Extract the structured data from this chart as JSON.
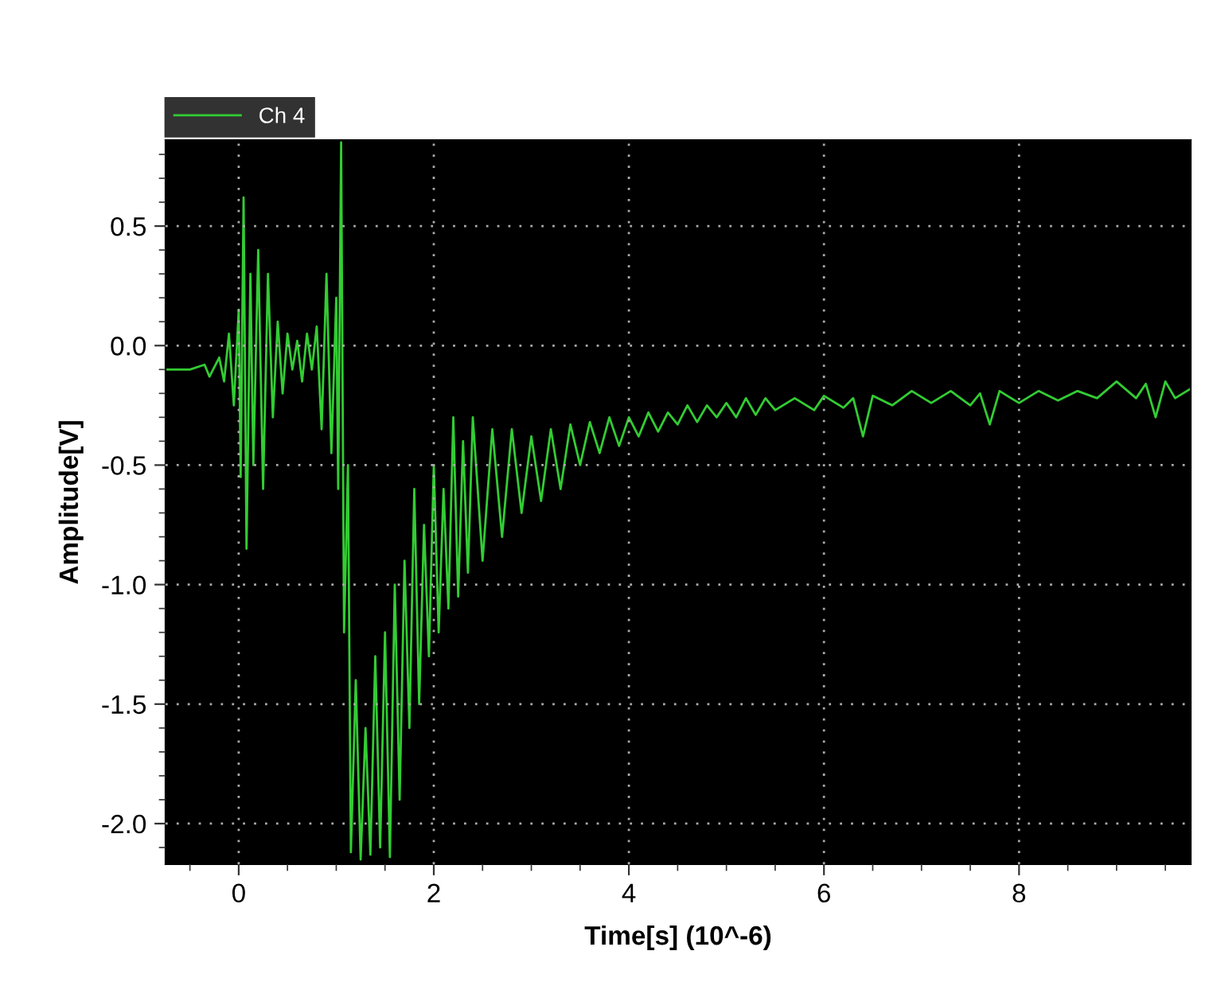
{
  "chart_data": {
    "type": "line",
    "xlabel": "Time[s] (10^-6)",
    "ylabel": "Amplitude[V]",
    "xlim": [
      -0.75,
      9.76
    ],
    "ylim": [
      -2.17,
      0.86
    ],
    "xticks": [
      0,
      2,
      4,
      6,
      8
    ],
    "yticks": [
      {
        "value": 0.5,
        "label": "0.5"
      },
      {
        "value": 0,
        "label": "0.0"
      },
      {
        "value": -0.5,
        "label": "-0.5"
      },
      {
        "value": -1,
        "label": "-1.0"
      },
      {
        "value": -1.5,
        "label": "-1.5"
      },
      {
        "value": -2,
        "label": "-2.0"
      }
    ],
    "grid": true,
    "legend": "top left",
    "marker": "none",
    "line_style": "solid",
    "x": [
      -0.75,
      -0.5,
      -0.35,
      -0.3,
      -0.2,
      -0.15,
      -0.1,
      -0.05,
      0.0,
      0.02,
      0.05,
      0.08,
      0.12,
      0.15,
      0.2,
      0.25,
      0.3,
      0.35,
      0.4,
      0.45,
      0.5,
      0.55,
      0.6,
      0.65,
      0.7,
      0.75,
      0.8,
      0.85,
      0.9,
      0.95,
      1.0,
      1.02,
      1.05,
      1.08,
      1.12,
      1.15,
      1.2,
      1.25,
      1.3,
      1.35,
      1.4,
      1.45,
      1.5,
      1.55,
      1.6,
      1.65,
      1.7,
      1.75,
      1.8,
      1.85,
      1.9,
      1.95,
      2.0,
      2.05,
      2.1,
      2.15,
      2.2,
      2.25,
      2.3,
      2.35,
      2.4,
      2.5,
      2.6,
      2.7,
      2.8,
      2.9,
      3.0,
      3.1,
      3.2,
      3.3,
      3.4,
      3.5,
      3.6,
      3.7,
      3.8,
      3.9,
      4.0,
      4.1,
      4.2,
      4.3,
      4.4,
      4.5,
      4.6,
      4.7,
      4.8,
      4.9,
      5.0,
      5.1,
      5.2,
      5.3,
      5.4,
      5.5,
      5.7,
      5.9,
      6.0,
      6.2,
      6.3,
      6.4,
      6.5,
      6.7,
      6.9,
      7.1,
      7.3,
      7.5,
      7.6,
      7.7,
      7.8,
      8.0,
      8.2,
      8.4,
      8.6,
      8.8,
      9.0,
      9.2,
      9.3,
      9.4,
      9.5,
      9.6,
      9.76
    ],
    "series": [
      {
        "name": "Ch 4",
        "color": "#33cc33",
        "values": [
          -0.1,
          -0.1,
          -0.08,
          -0.13,
          -0.05,
          -0.15,
          0.05,
          -0.25,
          0.15,
          -0.55,
          0.62,
          -0.85,
          0.3,
          -0.5,
          0.4,
          -0.6,
          0.3,
          -0.3,
          0.1,
          -0.2,
          0.05,
          -0.1,
          0.02,
          -0.15,
          0.05,
          -0.1,
          0.08,
          -0.35,
          0.3,
          -0.45,
          0.2,
          -0.6,
          0.85,
          -1.2,
          -0.5,
          -2.12,
          -1.4,
          -2.15,
          -1.6,
          -2.13,
          -1.3,
          -2.1,
          -1.2,
          -2.14,
          -1.0,
          -1.9,
          -0.9,
          -1.6,
          -0.6,
          -1.5,
          -0.75,
          -1.3,
          -0.5,
          -1.2,
          -0.6,
          -1.1,
          -0.3,
          -1.05,
          -0.4,
          -0.95,
          -0.3,
          -0.9,
          -0.35,
          -0.8,
          -0.35,
          -0.7,
          -0.38,
          -0.65,
          -0.35,
          -0.6,
          -0.33,
          -0.5,
          -0.32,
          -0.45,
          -0.3,
          -0.42,
          -0.3,
          -0.38,
          -0.28,
          -0.36,
          -0.28,
          -0.33,
          -0.25,
          -0.32,
          -0.25,
          -0.3,
          -0.24,
          -0.3,
          -0.22,
          -0.29,
          -0.22,
          -0.27,
          -0.22,
          -0.27,
          -0.21,
          -0.26,
          -0.22,
          -0.38,
          -0.21,
          -0.25,
          -0.19,
          -0.24,
          -0.19,
          -0.25,
          -0.2,
          -0.33,
          -0.19,
          -0.24,
          -0.19,
          -0.23,
          -0.19,
          -0.22,
          -0.15,
          -0.22,
          -0.16,
          -0.3,
          -0.15,
          -0.22,
          -0.18
        ]
      }
    ]
  }
}
